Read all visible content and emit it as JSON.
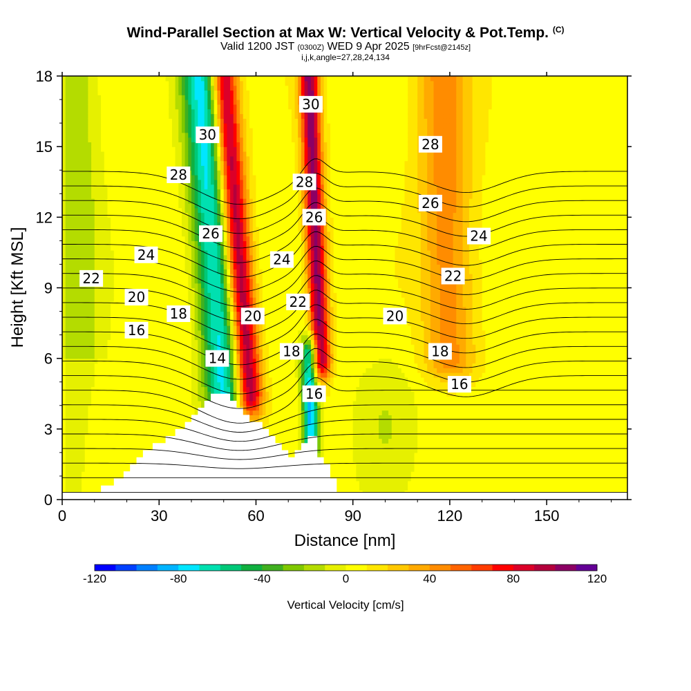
{
  "header": {
    "title": "Wind-Parallel Section at Max W: Vertical Velocity & Pot.Temp.",
    "title_mark": "(C)",
    "subtitle_a": "Valid 1200 JST",
    "subtitle_b": "(0300Z)",
    "subtitle_c": "WED 9 Apr 2025",
    "subtitle_d": "[9hrFcst@2145z]",
    "subtitle2": "i,j,k,angle=27,28,24,134"
  },
  "chart_data": {
    "type": "heatmap",
    "xlabel": "Distance [nm]",
    "ylabel": "Height [Kft MSL]",
    "xlim": [
      0,
      175
    ],
    "ylim": [
      0,
      18
    ],
    "xticks": [
      "0",
      "30",
      "60",
      "90",
      "120",
      "150"
    ],
    "xtick_values": [
      0,
      30,
      60,
      90,
      120,
      150
    ],
    "yticks": [
      "0",
      "3",
      "6",
      "9",
      "12",
      "15",
      "18"
    ],
    "ytick_values": [
      0,
      3,
      6,
      9,
      12,
      15,
      18
    ],
    "colorbar": {
      "title": "Vertical Velocity [cm/s]",
      "range": [
        -120,
        120
      ],
      "step": 10,
      "tick_labels": [
        "-120",
        "-80",
        "-40",
        "0",
        "40",
        "80",
        "120"
      ],
      "tick_values": [
        -120,
        -80,
        -40,
        0,
        40,
        80,
        120
      ],
      "colors": [
        "#0000ff",
        "#0040ff",
        "#0080ff",
        "#00b4ff",
        "#00e6ff",
        "#00e0b0",
        "#00c878",
        "#10b040",
        "#40b020",
        "#80c800",
        "#b4dc00",
        "#e6f000",
        "#ffff00",
        "#ffe600",
        "#ffc800",
        "#ffaa00",
        "#ff8c00",
        "#ff6400",
        "#ff3c00",
        "#ff0000",
        "#dc0028",
        "#b4003c",
        "#8c0064",
        "#640096"
      ]
    },
    "terrain_profile": [
      [
        0,
        0.3
      ],
      [
        12,
        0.3
      ],
      [
        12,
        0.6
      ],
      [
        16,
        0.6
      ],
      [
        16,
        0.9
      ],
      [
        19,
        0.9
      ],
      [
        19,
        1.2
      ],
      [
        21,
        1.2
      ],
      [
        21,
        1.5
      ],
      [
        23,
        1.5
      ],
      [
        23,
        1.8
      ],
      [
        25,
        1.8
      ],
      [
        25,
        2.1
      ],
      [
        28,
        2.1
      ],
      [
        28,
        2.4
      ],
      [
        32,
        2.4
      ],
      [
        32,
        2.7
      ],
      [
        35,
        2.7
      ],
      [
        35,
        3.0
      ],
      [
        38,
        3.0
      ],
      [
        38,
        3.3
      ],
      [
        40,
        3.3
      ],
      [
        40,
        3.6
      ],
      [
        42,
        3.6
      ],
      [
        42,
        3.9
      ],
      [
        44,
        3.9
      ],
      [
        44,
        4.2
      ],
      [
        46,
        4.2
      ],
      [
        46,
        4.5
      ],
      [
        52,
        4.5
      ],
      [
        52,
        4.2
      ],
      [
        54,
        4.2
      ],
      [
        54,
        3.9
      ],
      [
        56,
        3.9
      ],
      [
        56,
        3.6
      ],
      [
        58,
        3.6
      ],
      [
        58,
        3.3
      ],
      [
        62,
        3.3
      ],
      [
        62,
        3.0
      ],
      [
        64,
        3.0
      ],
      [
        64,
        2.7
      ],
      [
        66,
        2.7
      ],
      [
        66,
        2.4
      ],
      [
        68,
        2.4
      ],
      [
        68,
        2.1
      ],
      [
        70,
        2.1
      ],
      [
        70,
        1.8
      ],
      [
        72,
        1.8
      ],
      [
        72,
        2.1
      ],
      [
        74,
        2.1
      ],
      [
        74,
        2.4
      ],
      [
        76,
        2.4
      ],
      [
        76,
        2.7
      ],
      [
        79,
        2.7
      ],
      [
        79,
        1.8
      ],
      [
        81,
        1.8
      ],
      [
        81,
        1.5
      ],
      [
        83,
        1.5
      ],
      [
        83,
        0.9
      ],
      [
        85,
        0.9
      ],
      [
        85,
        0.3
      ],
      [
        175,
        0.3
      ]
    ],
    "vertical_velocity_features": [
      {
        "name": "downdraft-left",
        "x_center": 50,
        "x_halfwidth": 6,
        "y_range": [
          4.5,
          18
        ],
        "tilt_nm_per_kft": -0.9,
        "peak_cm_s": -80
      },
      {
        "name": "updraft-main",
        "x_center": 58,
        "x_halfwidth": 4,
        "y_range": [
          4.5,
          18
        ],
        "tilt_nm_per_kft": -1.0,
        "peak_cm_s": 100
      },
      {
        "name": "downdraft-center",
        "x_center": 77,
        "x_halfwidth": 2.5,
        "y_range": [
          2.5,
          6
        ],
        "tilt_nm_per_kft": -0.2,
        "peak_cm_s": -90
      },
      {
        "name": "updraft-right",
        "x_center": 80,
        "x_halfwidth": 3,
        "y_range": [
          6,
          18
        ],
        "tilt_nm_per_kft": -0.5,
        "peak_cm_s": 100
      },
      {
        "name": "updraft-far-right",
        "x_center": 120,
        "x_halfwidth": 8,
        "y_range": [
          6,
          18
        ],
        "tilt_nm_per_kft": -0.3,
        "peak_cm_s": 40
      }
    ],
    "potential_temperature_contours": {
      "interval": 1,
      "labeled_values": [
        14,
        16,
        18,
        20,
        22,
        24,
        26,
        28,
        30
      ],
      "labels": [
        {
          "text": "14",
          "x": 48,
          "y": 6.0
        },
        {
          "text": "16",
          "x": 23,
          "y": 7.2
        },
        {
          "text": "18",
          "x": 36,
          "y": 7.9
        },
        {
          "text": "20",
          "x": 23,
          "y": 8.6
        },
        {
          "text": "22",
          "x": 9,
          "y": 9.4
        },
        {
          "text": "24",
          "x": 26,
          "y": 10.4
        },
        {
          "text": "26",
          "x": 46,
          "y": 11.3
        },
        {
          "text": "28",
          "x": 36,
          "y": 13.8
        },
        {
          "text": "30",
          "x": 45,
          "y": 15.5
        },
        {
          "text": "20",
          "x": 59,
          "y": 7.8
        },
        {
          "text": "24",
          "x": 68,
          "y": 10.2
        },
        {
          "text": "22",
          "x": 73,
          "y": 8.4
        },
        {
          "text": "18",
          "x": 71,
          "y": 6.3
        },
        {
          "text": "16",
          "x": 78,
          "y": 4.5
        },
        {
          "text": "28",
          "x": 75,
          "y": 13.5
        },
        {
          "text": "26",
          "x": 78,
          "y": 12.0
        },
        {
          "text": "30",
          "x": 77,
          "y": 16.8
        },
        {
          "text": "20",
          "x": 103,
          "y": 7.8
        },
        {
          "text": "18",
          "x": 117,
          "y": 6.3
        },
        {
          "text": "16",
          "x": 123,
          "y": 4.9
        },
        {
          "text": "22",
          "x": 121,
          "y": 9.5
        },
        {
          "text": "24",
          "x": 129,
          "y": 11.2
        },
        {
          "text": "26",
          "x": 114,
          "y": 12.6
        },
        {
          "text": "28",
          "x": 114,
          "y": 15.1
        }
      ]
    }
  }
}
